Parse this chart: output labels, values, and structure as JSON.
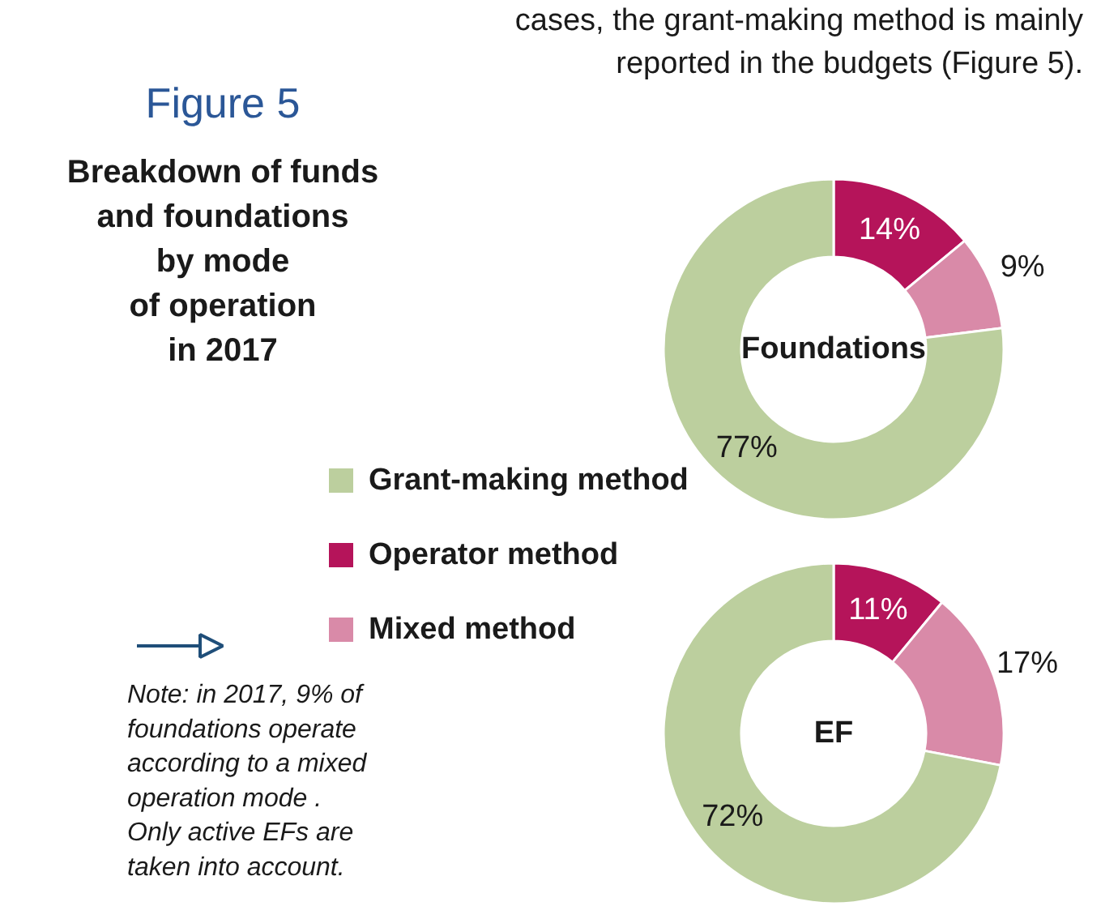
{
  "chart_data": [
    {
      "type": "donut",
      "title": "Foundations",
      "categories": [
        "Grant-making method",
        "Operator method",
        "Mixed method"
      ],
      "values": [
        77,
        14,
        9
      ],
      "colors": [
        "#bccf9e",
        "#b5145a",
        "#d98aa8"
      ],
      "value_labels": [
        "77%",
        "14%",
        "9%"
      ],
      "legend": "left",
      "annotations": [
        "cases, the grant-making method is mainly\nreported in the budgets (Figure 5).",
        "Figure 5",
        "Breakdown of funds\nand foundations\nby mode\nof operation\nin 2017",
        "Note: in 2017, 9% of\nfoundations operate\naccording to a mixed\noperation mode .\nOnly active EFs are\ntaken into account."
      ]
    },
    {
      "type": "donut",
      "title": "EF",
      "categories": [
        null,
        null,
        null
      ],
      "values": [
        72,
        11,
        17
      ],
      "colors": [
        "#bccf9e",
        "#b5145a",
        "#d98aa8"
      ],
      "value_labels": [
        "72%",
        "11%",
        "17%"
      ]
    }
  ]
}
